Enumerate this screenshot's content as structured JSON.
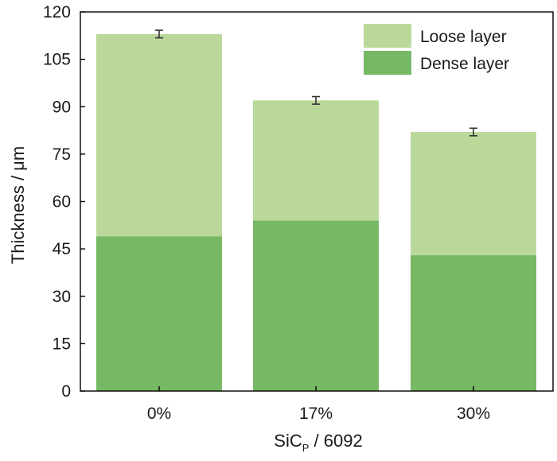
{
  "chart_data": {
    "type": "bar",
    "stacked": true,
    "categories": [
      "0%",
      "17%",
      "30%"
    ],
    "series": [
      {
        "name": "Dense layer",
        "values": [
          49,
          54,
          43
        ],
        "color": "#77b865"
      },
      {
        "name": "Loose layer",
        "values": [
          64,
          38,
          39
        ],
        "color": "#bbd89b"
      }
    ],
    "totals": [
      113,
      92,
      82
    ],
    "error_bars": [
      1.2,
      1.2,
      1.2
    ],
    "error_bar_color": "#333333",
    "ylim": [
      0,
      120
    ],
    "yticks": [
      "0",
      "15",
      "30",
      "45",
      "60",
      "75",
      "90",
      "105",
      "120"
    ],
    "ylabel": "Thickness / μm",
    "xlabel": {
      "main": "SiC",
      "subscript": "P",
      "suffix": " / 6092"
    },
    "legend": {
      "position": "top-right",
      "entries": [
        "Loose layer",
        "Dense layer"
      ]
    },
    "grid": false
  }
}
